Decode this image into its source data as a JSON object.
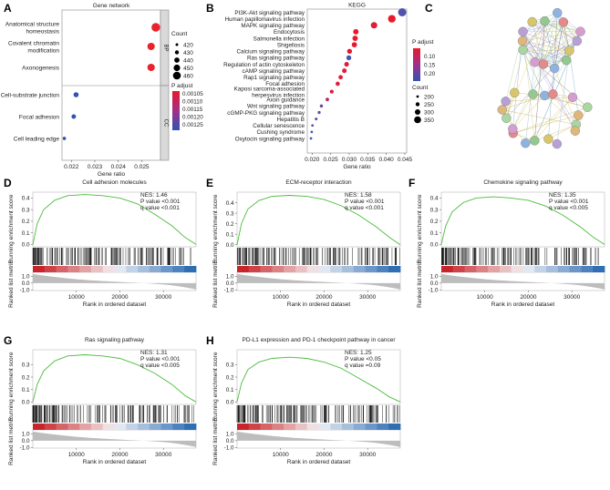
{
  "panel_letters": [
    "A",
    "B",
    "C",
    "D",
    "E",
    "F",
    "G",
    "H"
  ],
  "chart_data": [
    {
      "id": "A",
      "type": "scatter",
      "title": "Gene network",
      "xlabel": "Gene ratio",
      "x_ticks": [
        "0.022",
        "0.023",
        "0.024",
        "0.025"
      ],
      "x_tick_values": [
        0.022,
        0.023,
        0.024,
        0.025
      ],
      "xlim": [
        0.0216,
        0.0258
      ],
      "groups": [
        {
          "name": "BP",
          "terms": [
            "Anatomical structure homeostasis",
            "Covalent chromatin modification",
            "Axonogenesis"
          ],
          "labels": [
            "Anatomical structure\nhomeostasis",
            "Covalent chromatin\nmodification",
            "Axonogenesis"
          ],
          "ratio": [
            0.0256,
            0.0254,
            0.0254
          ],
          "count": [
            460,
            450,
            450
          ],
          "padj": [
            0.00105,
            0.00105,
            0.00105
          ]
        },
        {
          "name": "CC",
          "terms": [
            "Cell-substrate junction",
            "Focal adhesion",
            "Cell leading edge"
          ],
          "labels": [
            "Cell-substrate junction",
            "Focal adhesion",
            "Cell leading edge"
          ],
          "ratio": [
            0.0222,
            0.0221,
            0.0217
          ],
          "count": [
            430,
            425,
            415
          ],
          "padj": [
            0.00125,
            0.00125,
            0.00125
          ]
        }
      ],
      "size_legend": {
        "title": "Count",
        "values": [
          420,
          430,
          440,
          450,
          460
        ]
      },
      "color_legend": {
        "title": "P adjust",
        "values": [
          "0.00105",
          "0.00110",
          "0.00115",
          "0.00120",
          "0.00125"
        ]
      }
    },
    {
      "id": "B",
      "type": "scatter",
      "title": "KEGG",
      "xlabel": "Gene ratio",
      "x_ticks": [
        "0.020",
        "0.025",
        "0.030",
        "0.035",
        "0.040",
        "0.045"
      ],
      "x_tick_values": [
        0.02,
        0.025,
        0.03,
        0.035,
        0.04,
        0.045
      ],
      "xlim": [
        0.0187,
        0.0455
      ],
      "terms": [
        "PI3K-Akt signaling pathway",
        "Human papillomavirus infection",
        "MAPK signaling pathway",
        "Endocytosis",
        "Salmonella infection",
        "Shigellosis",
        "Calcium signaling pathway",
        "Ras signaling pathway",
        "Regulation of actin cytoskeleton",
        "cAMP signaling pathway",
        "Rap1 signaling pathway",
        "Focal adhesion",
        "Kaposi sarcoma-associated herpesvirus infection",
        "Axon guidance",
        "Wnt signaling pathway",
        "cGMP-PKG signaling pathway",
        "Hepatitis B",
        "Cellular senescence",
        "Cushing syndrome",
        "Oxytocin signaling pathway"
      ],
      "labels": [
        "PI3K-Akt signaling pathway",
        "Human papillomavirus infection",
        "MAPK signaling pathway",
        "Endocytosis",
        "Salmonella infection",
        "Shigellosis",
        "Calcium signaling pathway",
        "Ras signaling pathway",
        "Regulation of actin cytoskeleton",
        "cAMP signaling pathway",
        "Rap1 signaling pathway",
        "Focal adhesion",
        "Kaposi sarcoma-associated\nherpesvirus infection",
        "Axon guidance",
        "Wnt signaling pathway",
        "cGMP-PKG signaling pathway",
        "Hepatitis B",
        "Cellular senescence",
        "Cushing syndrome",
        "Oxytocin signaling pathway"
      ],
      "ratio": [
        0.0443,
        0.0415,
        0.0367,
        0.0318,
        0.0316,
        0.0314,
        0.0301,
        0.0299,
        0.0293,
        0.0287,
        0.0277,
        0.0269,
        0.0253,
        0.0241,
        0.0225,
        0.0219,
        0.0211,
        0.0201,
        0.0199,
        0.0197
      ],
      "count": [
        360,
        340,
        300,
        265,
        262,
        258,
        248,
        246,
        240,
        236,
        228,
        222,
        210,
        198,
        188,
        182,
        174,
        166,
        164,
        162
      ],
      "padj": [
        0.19,
        0.06,
        0.07,
        0.06,
        0.06,
        0.06,
        0.06,
        0.2,
        0.07,
        0.07,
        0.07,
        0.07,
        0.08,
        0.12,
        0.17,
        0.18,
        0.18,
        0.18,
        0.19,
        0.2
      ],
      "size_legend": {
        "title": "Count",
        "values": [
          200,
          250,
          300,
          350
        ]
      },
      "color_legend": {
        "title": "P adjust",
        "values": [
          "0.10",
          "0.15",
          "0.20"
        ]
      }
    },
    {
      "id": "C",
      "type": "network",
      "title": "",
      "nodes": 32,
      "node_colors": [
        "#b8a0d6",
        "#d9c56a",
        "#93c88e",
        "#8fb3e0",
        "#e38a8a",
        "#d69ecf",
        "#a9d6a1",
        "#e0b77a"
      ]
    },
    {
      "id": "D",
      "type": "line",
      "title": "Cell adhesion molecules",
      "nes": "NES: 1.46",
      "p": "P value <0.001",
      "q": "q value <0.001",
      "es_points": [
        [
          0,
          0
        ],
        [
          1000,
          0.18
        ],
        [
          2500,
          0.3
        ],
        [
          5000,
          0.38
        ],
        [
          8000,
          0.42
        ],
        [
          12000,
          0.43
        ],
        [
          16000,
          0.42
        ],
        [
          20000,
          0.4
        ],
        [
          24000,
          0.35
        ],
        [
          28000,
          0.26
        ],
        [
          32000,
          0.16
        ],
        [
          35000,
          0.06
        ],
        [
          37500,
          0.0
        ]
      ],
      "ylim": [
        -0.02,
        0.45
      ],
      "y_ticks": [
        "0.0",
        "0.1",
        "0.2",
        "0.3",
        "0.4"
      ],
      "y_tick_values": [
        0,
        0.1,
        0.2,
        0.3,
        0.4
      ],
      "metric_ticks": [
        "-1.0",
        "0.0",
        "1.0"
      ],
      "metric_tick_values": [
        -1,
        0,
        1
      ],
      "x_ticks": [
        "10000",
        "20000",
        "30000"
      ],
      "x_tick_values": [
        10000,
        20000,
        30000
      ],
      "xlim": [
        0,
        37500
      ],
      "ylabel_top": "Running enrichment score",
      "ylabel_bottom": "Ranked list metric",
      "xlabel": "Rank in ordered dataset"
    },
    {
      "id": "E",
      "type": "line",
      "title": "ECM-receptor interaction",
      "nes": "NES: 1.58",
      "p": "P value <0.001",
      "q": "q value <0.001",
      "es_points": [
        [
          0,
          0
        ],
        [
          1000,
          0.2
        ],
        [
          2500,
          0.34
        ],
        [
          5000,
          0.42
        ],
        [
          8000,
          0.46
        ],
        [
          12000,
          0.47
        ],
        [
          16000,
          0.46
        ],
        [
          20000,
          0.43
        ],
        [
          24000,
          0.37
        ],
        [
          28000,
          0.28
        ],
        [
          32000,
          0.17
        ],
        [
          35000,
          0.07
        ],
        [
          37500,
          0.0
        ]
      ],
      "ylim": [
        -0.02,
        0.5
      ],
      "y_ticks": [
        "0.0",
        "0.1",
        "0.2",
        "0.3",
        "0.4"
      ],
      "y_tick_values": [
        0,
        0.1,
        0.2,
        0.3,
        0.4
      ],
      "metric_ticks": [
        "-1.0",
        "0.0",
        "1.0"
      ],
      "metric_tick_values": [
        -1,
        0,
        1
      ],
      "x_ticks": [
        "10000",
        "20000",
        "30000"
      ],
      "x_tick_values": [
        10000,
        20000,
        30000
      ],
      "xlim": [
        0,
        37500
      ],
      "ylabel_top": "Running enrichment score",
      "ylabel_bottom": "Ranked list metric",
      "xlabel": "Rank in ordered dataset"
    },
    {
      "id": "F",
      "type": "line",
      "title": "Chemokine signaling pathway",
      "nes": "NES: 1.35",
      "p": "P value <0.001",
      "q": "q value <0.005",
      "es_points": [
        [
          0,
          0
        ],
        [
          1000,
          0.16
        ],
        [
          2500,
          0.28
        ],
        [
          5000,
          0.36
        ],
        [
          8000,
          0.4
        ],
        [
          12000,
          0.41
        ],
        [
          16000,
          0.4
        ],
        [
          20000,
          0.38
        ],
        [
          24000,
          0.33
        ],
        [
          28000,
          0.25
        ],
        [
          32000,
          0.15
        ],
        [
          35000,
          0.06
        ],
        [
          37500,
          0.0
        ]
      ],
      "ylim": [
        -0.02,
        0.45
      ],
      "y_ticks": [
        "0.0",
        "0.1",
        "0.2",
        "0.3",
        "0.4"
      ],
      "y_tick_values": [
        0,
        0.1,
        0.2,
        0.3,
        0.4
      ],
      "metric_ticks": [
        "-1.0",
        "0.0",
        "1.0"
      ],
      "metric_tick_values": [
        -1,
        0,
        1
      ],
      "x_ticks": [
        "10000",
        "20000",
        "30000"
      ],
      "x_tick_values": [
        10000,
        20000,
        30000
      ],
      "xlim": [
        0,
        37500
      ],
      "ylabel_top": "Running enrichment score",
      "ylabel_bottom": "Ranked list metric",
      "xlabel": "Rank in ordered dataset"
    },
    {
      "id": "G",
      "type": "line",
      "title": "Ras signaling pathway",
      "nes": "NES: 1.31",
      "p": "P value <0.001",
      "q": "q value <0.005",
      "es_points": [
        [
          0,
          0
        ],
        [
          1000,
          0.14
        ],
        [
          2500,
          0.25
        ],
        [
          5000,
          0.33
        ],
        [
          8000,
          0.37
        ],
        [
          12000,
          0.38
        ],
        [
          16000,
          0.37
        ],
        [
          20000,
          0.35
        ],
        [
          24000,
          0.3
        ],
        [
          28000,
          0.23
        ],
        [
          32000,
          0.14
        ],
        [
          35000,
          0.05
        ],
        [
          37500,
          0.0
        ]
      ],
      "ylim": [
        -0.02,
        0.42
      ],
      "y_ticks": [
        "0.0",
        "0.1",
        "0.2",
        "0.3"
      ],
      "y_tick_values": [
        0,
        0.1,
        0.2,
        0.3
      ],
      "metric_ticks": [
        "-1.0",
        "0.0",
        "1.0"
      ],
      "metric_tick_values": [
        -1,
        0,
        1
      ],
      "x_ticks": [
        "10000",
        "20000",
        "30000"
      ],
      "x_tick_values": [
        10000,
        20000,
        30000
      ],
      "xlim": [
        0,
        37500
      ],
      "ylabel_top": "Running enrichment score",
      "ylabel_bottom": "Ranked list metric",
      "xlabel": "Rank in ordered dataset"
    },
    {
      "id": "H",
      "type": "line",
      "title": "PD-L1 expression and PD-1 checkpoint pathway in cancer",
      "nes": "NES: 1.25",
      "p": "P value <0.05",
      "q": "q value =0.09",
      "es_points": [
        [
          0,
          0
        ],
        [
          1000,
          0.15
        ],
        [
          2500,
          0.26
        ],
        [
          5000,
          0.32
        ],
        [
          8000,
          0.35
        ],
        [
          12000,
          0.36
        ],
        [
          16000,
          0.35
        ],
        [
          20000,
          0.32
        ],
        [
          24000,
          0.27
        ],
        [
          28000,
          0.19
        ],
        [
          32000,
          0.11
        ],
        [
          35000,
          0.04
        ],
        [
          37500,
          0.0
        ]
      ],
      "ylim": [
        -0.02,
        0.42
      ],
      "y_ticks": [
        "0.0",
        "0.1",
        "0.2",
        "0.3"
      ],
      "y_tick_values": [
        0,
        0.1,
        0.2,
        0.3
      ],
      "metric_ticks": [
        "-1.0",
        "0.0",
        "1.0"
      ],
      "metric_tick_values": [
        -1,
        0,
        1
      ],
      "x_ticks": [
        "10000",
        "20000",
        "30000"
      ],
      "x_tick_values": [
        10000,
        20000,
        30000
      ],
      "xlim": [
        0,
        37500
      ],
      "ylabel_top": "Running enrichment score",
      "ylabel_bottom": "Ranked list metric",
      "xlabel": "Rank in ordered dataset"
    }
  ]
}
